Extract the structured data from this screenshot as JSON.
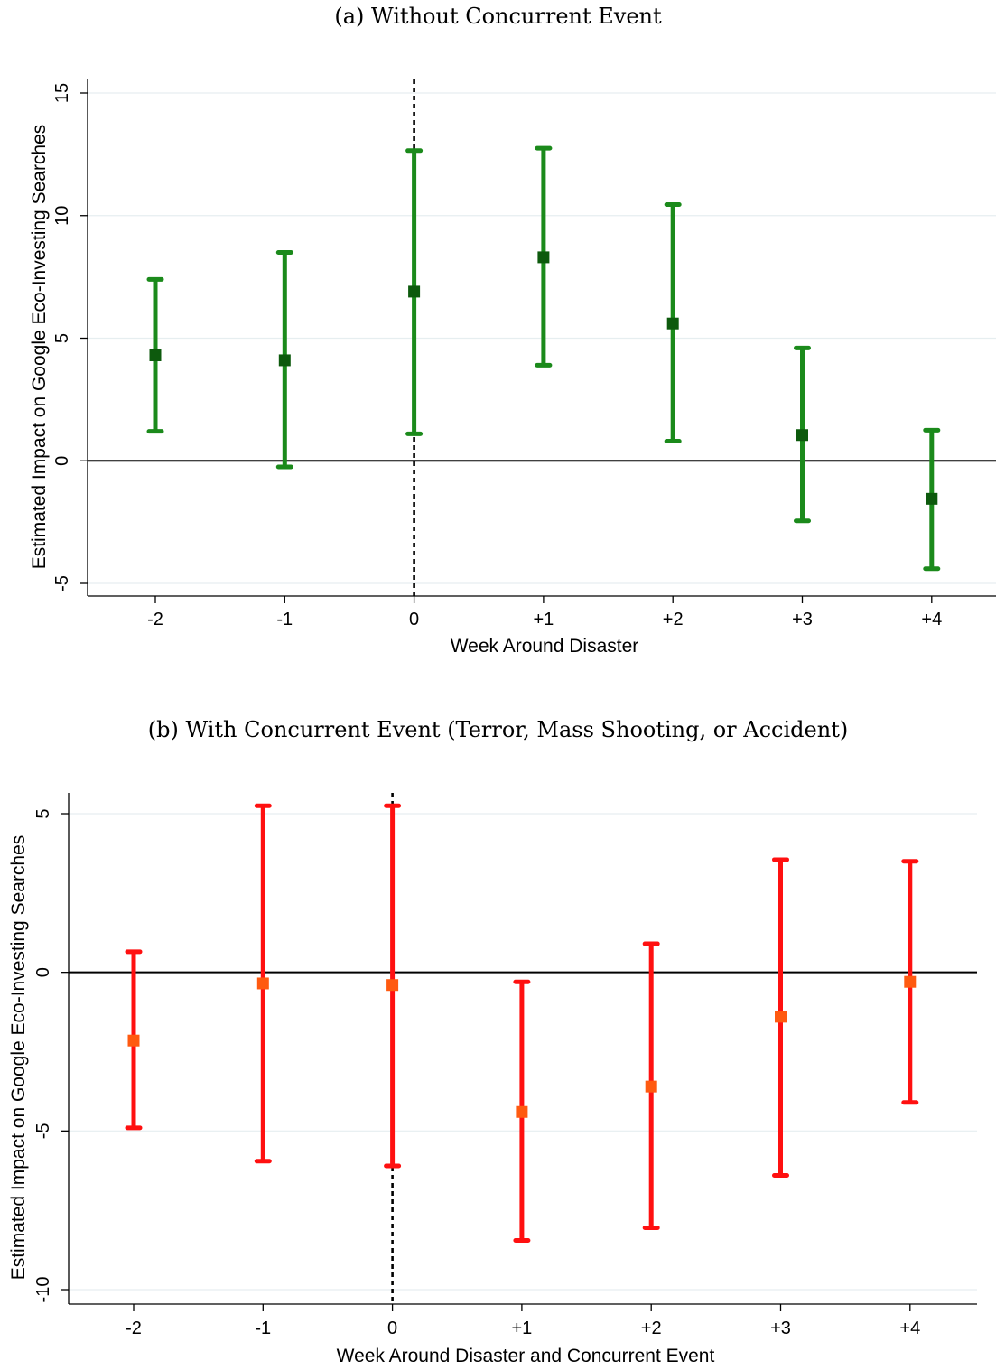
{
  "panels": [
    {
      "caption": "(a) Without Concurrent Event",
      "chart_data": {
        "type": "scatter",
        "subtype": "coefficient-plot-with-95ci",
        "title": "(a) Without Concurrent Event",
        "xlabel": "Week Around Disaster",
        "ylabel": "Estimated Impact on Google Eco-Investing Searches",
        "categories": [
          "-2",
          "-1",
          "0",
          "+1",
          "+2",
          "+3",
          "+4"
        ],
        "point": [
          4.3,
          4.1,
          6.9,
          8.3,
          5.6,
          1.05,
          -1.55
        ],
        "ci_low": [
          1.2,
          -0.25,
          1.1,
          3.9,
          0.8,
          -2.45,
          -4.4
        ],
        "ci_high": [
          7.4,
          8.5,
          12.65,
          12.75,
          10.45,
          4.6,
          1.25
        ],
        "yticks": [
          -5,
          0,
          5,
          10,
          15
        ],
        "ylim": [
          -5.5,
          15.5
        ],
        "reference_line_y": 0,
        "event_line_x": "0",
        "grid": "horizontal",
        "colors": {
          "ci": "#1b8a1b",
          "point": "#0d5a0d",
          "grid": "#e6eef0"
        }
      }
    },
    {
      "caption": "(b) With Concurrent Event (Terror, Mass Shooting, or Accident)",
      "chart_data": {
        "type": "scatter",
        "subtype": "coefficient-plot-with-95ci",
        "title": "(b) With Concurrent Event (Terror, Mass Shooting, or Accident)",
        "xlabel": "Week Around Disaster and Concurrent Event",
        "ylabel": "Estimated Impact on Google Eco-Investing Searches",
        "categories": [
          "-2",
          "-1",
          "0",
          "+1",
          "+2",
          "+3",
          "+4"
        ],
        "point": [
          -2.15,
          -0.35,
          -0.4,
          -4.4,
          -3.6,
          -1.4,
          -0.3
        ],
        "ci_low": [
          -4.9,
          -5.95,
          -6.1,
          -8.45,
          -8.05,
          -6.4,
          -4.1
        ],
        "ci_high": [
          0.65,
          5.25,
          5.25,
          -0.3,
          0.9,
          3.55,
          3.5
        ],
        "yticks": [
          -10,
          -5,
          0,
          5
        ],
        "ylim": [
          -10.9,
          5.6
        ],
        "reference_line_y": 0,
        "event_line_x": "0",
        "grid": "horizontal",
        "colors": {
          "ci": "#ff1010",
          "point": "#ff5a10",
          "grid": "#e6eef0"
        }
      }
    }
  ]
}
